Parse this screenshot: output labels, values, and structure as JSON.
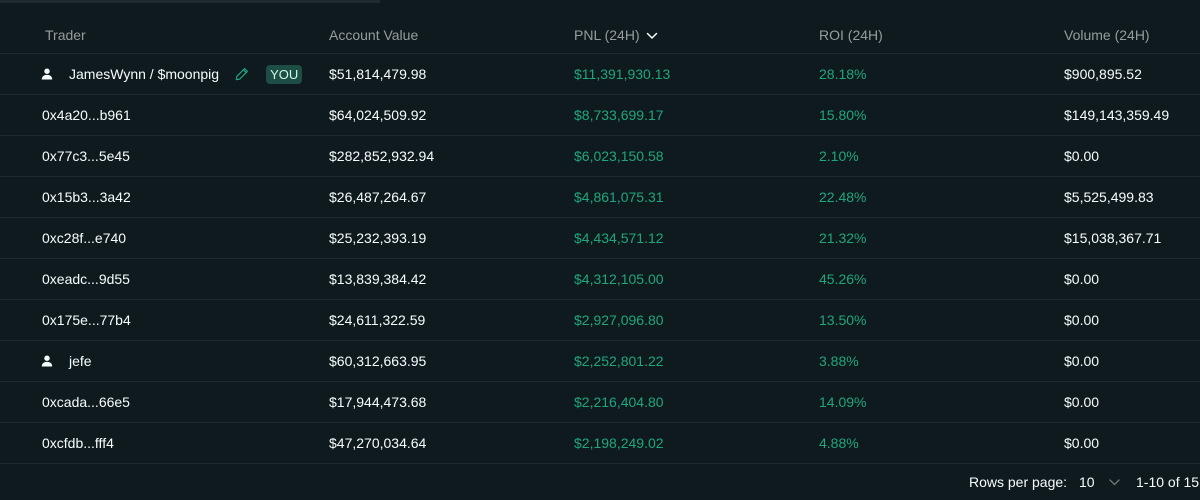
{
  "colors": {
    "background": "#0f1a1f",
    "positive": "#1fa67d",
    "header_text": "#949e9c",
    "text": "#f6fefd",
    "you_badge_bg": "#1d4d44"
  },
  "table": {
    "columns": {
      "trader": "Trader",
      "account_value": "Account Value",
      "pnl": "PNL (24H)",
      "roi": "ROI (24H)",
      "volume": "Volume (24H)"
    },
    "sorted_by": "pnl",
    "sort_icon": "chevron-down-icon",
    "rows": [
      {
        "trader": "JamesWynn / $moonpig",
        "user_icon": true,
        "edit_icon": true,
        "badge": "YOU",
        "account_value": "$51,814,479.98",
        "pnl": "$11,391,930.13",
        "roi": "28.18%",
        "volume": "$900,895.52"
      },
      {
        "trader": "0x4a20...b961",
        "account_value": "$64,024,509.92",
        "pnl": "$8,733,699.17",
        "roi": "15.80%",
        "volume": "$149,143,359.49"
      },
      {
        "trader": "0x77c3...5e45",
        "account_value": "$282,852,932.94",
        "pnl": "$6,023,150.58",
        "roi": "2.10%",
        "volume": "$0.00"
      },
      {
        "trader": "0x15b3...3a42",
        "account_value": "$26,487,264.67",
        "pnl": "$4,861,075.31",
        "roi": "22.48%",
        "volume": "$5,525,499.83"
      },
      {
        "trader": "0xc28f...e740",
        "account_value": "$25,232,393.19",
        "pnl": "$4,434,571.12",
        "roi": "21.32%",
        "volume": "$15,038,367.71"
      },
      {
        "trader": "0xeadc...9d55",
        "account_value": "$13,839,384.42",
        "pnl": "$4,312,105.00",
        "roi": "45.26%",
        "volume": "$0.00"
      },
      {
        "trader": "0x175e...77b4",
        "account_value": "$24,611,322.59",
        "pnl": "$2,927,096.80",
        "roi": "13.50%",
        "volume": "$0.00"
      },
      {
        "trader": "jefe",
        "user_icon": true,
        "account_value": "$60,312,663.95",
        "pnl": "$2,252,801.22",
        "roi": "3.88%",
        "volume": "$0.00"
      },
      {
        "trader": "0xcada...66e5",
        "account_value": "$17,944,473.68",
        "pnl": "$2,216,404.80",
        "roi": "14.09%",
        "volume": "$0.00"
      },
      {
        "trader": "0xcfdb...fff4",
        "account_value": "$47,270,034.64",
        "pnl": "$2,198,249.02",
        "roi": "4.88%",
        "volume": "$0.00"
      }
    ]
  },
  "pagination": {
    "rows_per_page_label": "Rows per page:",
    "rows_per_page_value": "10",
    "range": "1-10 of 15"
  }
}
